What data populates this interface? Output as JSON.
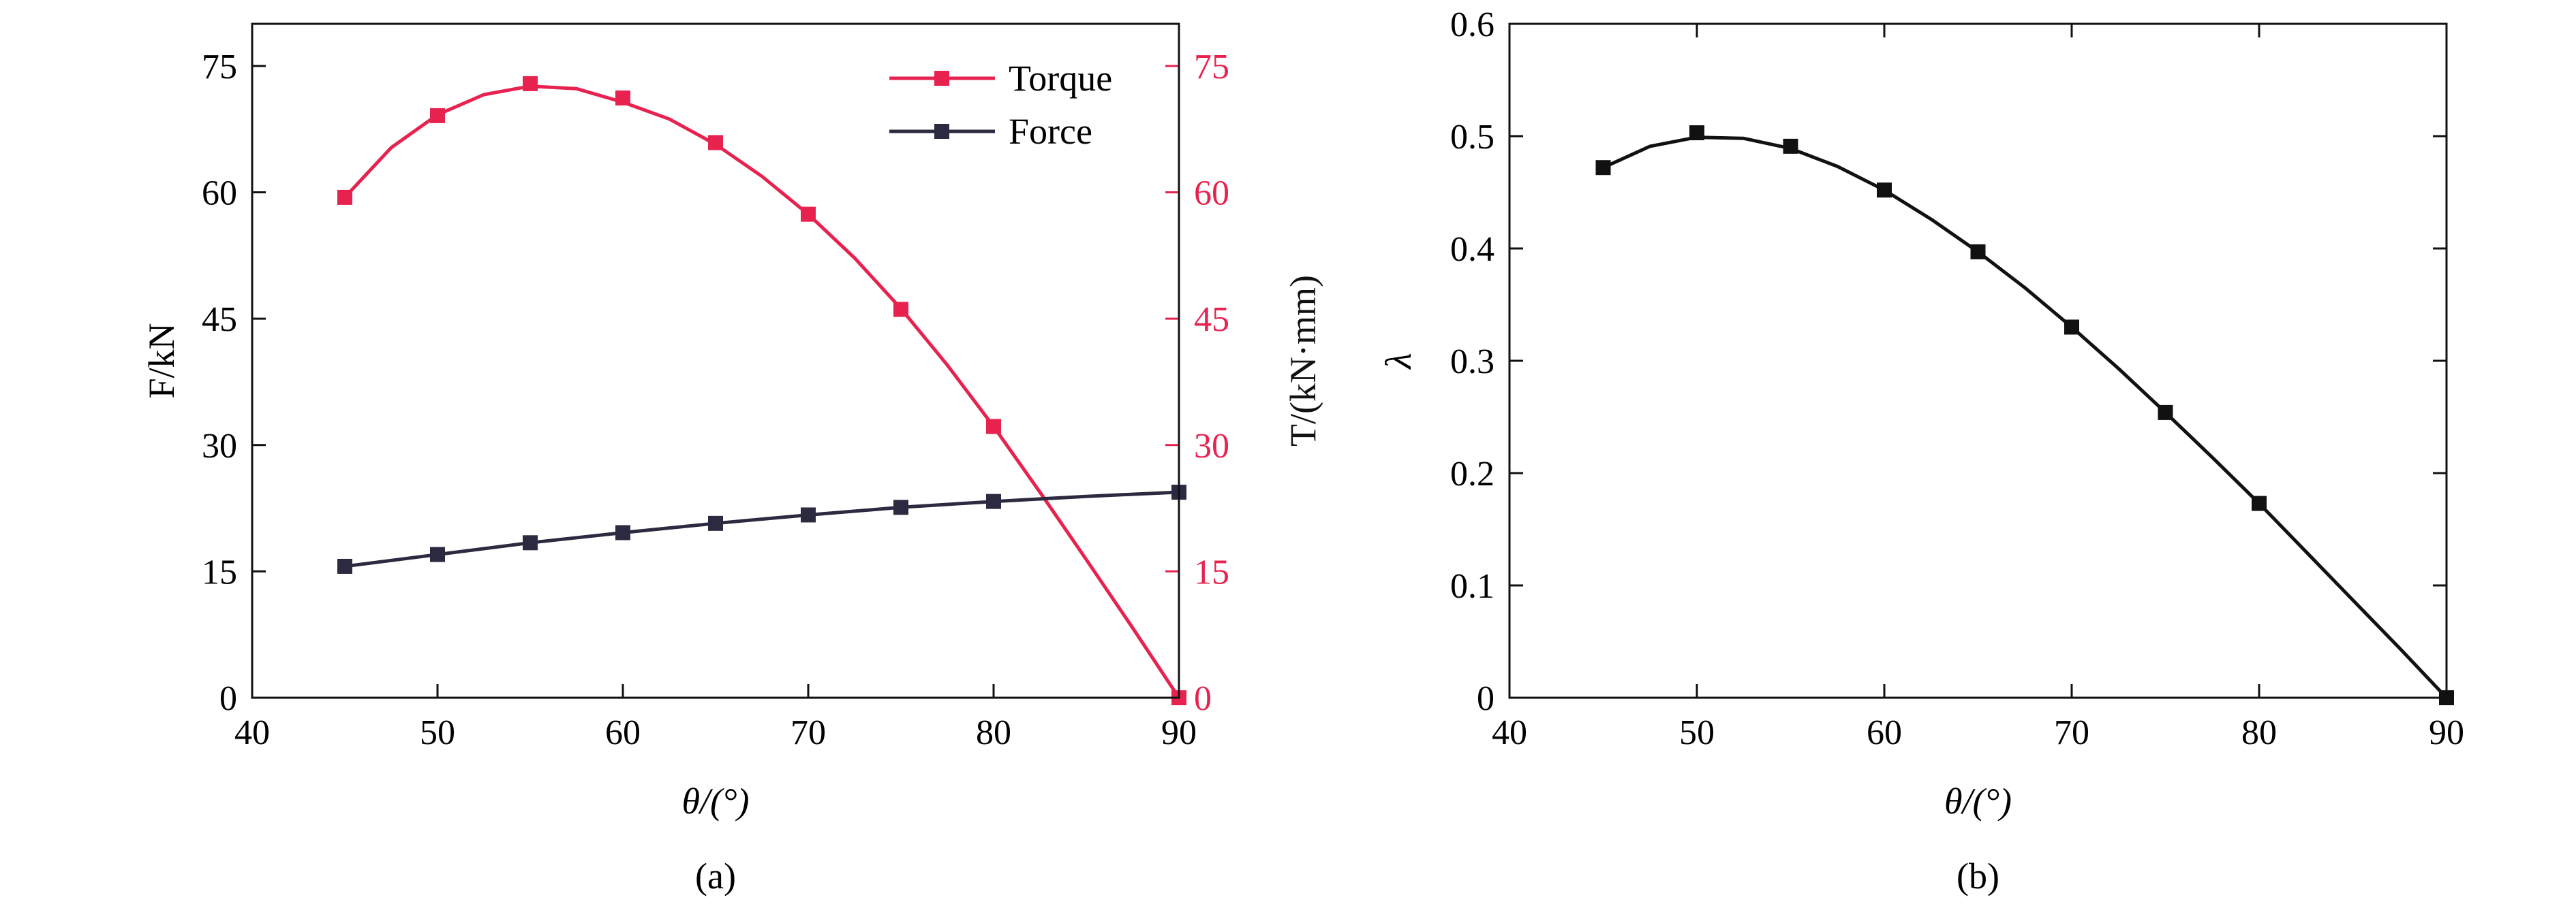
{
  "chart_data": [
    {
      "type": "line",
      "caption": "(a)",
      "xlabel": "θ/(°)",
      "ylabel_left": "F/kN",
      "ylabel_right": "T/(kN·mm)",
      "xlim": [
        40,
        90
      ],
      "ylim_left": [
        0,
        80
      ],
      "ylim_right": [
        0,
        80
      ],
      "x_ticks": [
        40,
        50,
        60,
        70,
        80,
        90
      ],
      "y_ticks_left": [
        0,
        15,
        30,
        45,
        60,
        75
      ],
      "y_ticks_right": [
        0,
        15,
        30,
        45,
        60,
        75
      ],
      "legend_position": "top-right",
      "series": [
        {
          "name": "Torque",
          "axis": "right",
          "color": "#e8224f",
          "marker": "square",
          "x": [
            45,
            50,
            55,
            60,
            65,
            70,
            75,
            80,
            90
          ],
          "y": [
            59.4,
            69.1,
            72.9,
            71.2,
            65.9,
            57.4,
            46.1,
            32.2,
            0
          ],
          "curve_x": [
            45,
            47.5,
            50,
            52.5,
            55,
            57.5,
            60,
            62.5,
            65,
            67.5,
            70,
            72.5,
            75,
            77.5,
            80,
            82.5,
            85,
            87.5,
            90
          ],
          "curve_y": [
            59.4,
            65.3,
            69.2,
            71.6,
            72.6,
            72.3,
            70.7,
            68.7,
            65.7,
            61.9,
            57.4,
            52.2,
            46.2,
            39.5,
            32.2,
            24.4,
            16.4,
            8.3,
            0
          ]
        },
        {
          "name": "Force",
          "axis": "left",
          "color": "#2b2a40",
          "marker": "square",
          "x": [
            45,
            50,
            55,
            60,
            65,
            70,
            75,
            80,
            90
          ],
          "y": [
            15.6,
            17.0,
            18.4,
            19.6,
            20.7,
            21.7,
            22.6,
            23.3,
            24.4
          ],
          "curve_x": [
            45,
            50,
            55,
            60,
            65,
            70,
            75,
            80,
            85,
            90
          ],
          "curve_y": [
            15.6,
            17.0,
            18.4,
            19.6,
            20.7,
            21.7,
            22.6,
            23.3,
            23.9,
            24.4
          ]
        }
      ]
    },
    {
      "type": "line",
      "caption": "(b)",
      "xlabel": "θ/(°)",
      "ylabel": "λ",
      "xlim": [
        40,
        90
      ],
      "ylim": [
        0,
        0.6
      ],
      "x_ticks": [
        40,
        50,
        60,
        70,
        80,
        90
      ],
      "y_ticks": [
        0,
        0.1,
        0.2,
        0.3,
        0.4,
        0.5,
        0.6
      ],
      "y_tick_labels": [
        "0",
        "0.1",
        "0.2",
        "0.3",
        "0.4",
        "0.5",
        "0.6"
      ],
      "series": [
        {
          "color": "#111111",
          "marker": "square",
          "x": [
            45,
            50,
            55,
            60,
            65,
            70,
            75,
            80,
            90
          ],
          "y": [
            0.472,
            0.503,
            0.491,
            0.452,
            0.397,
            0.33,
            0.254,
            0.173,
            0
          ],
          "curve_x": [
            45,
            47.5,
            50,
            52.5,
            55,
            57.5,
            60,
            62.5,
            65,
            67.5,
            70,
            72.5,
            75,
            77.5,
            80,
            82.5,
            85,
            87.5,
            90
          ],
          "curve_y": [
            0.472,
            0.491,
            0.499,
            0.498,
            0.489,
            0.473,
            0.452,
            0.426,
            0.397,
            0.365,
            0.33,
            0.293,
            0.254,
            0.214,
            0.173,
            0.13,
            0.087,
            0.044,
            0
          ]
        }
      ]
    }
  ]
}
